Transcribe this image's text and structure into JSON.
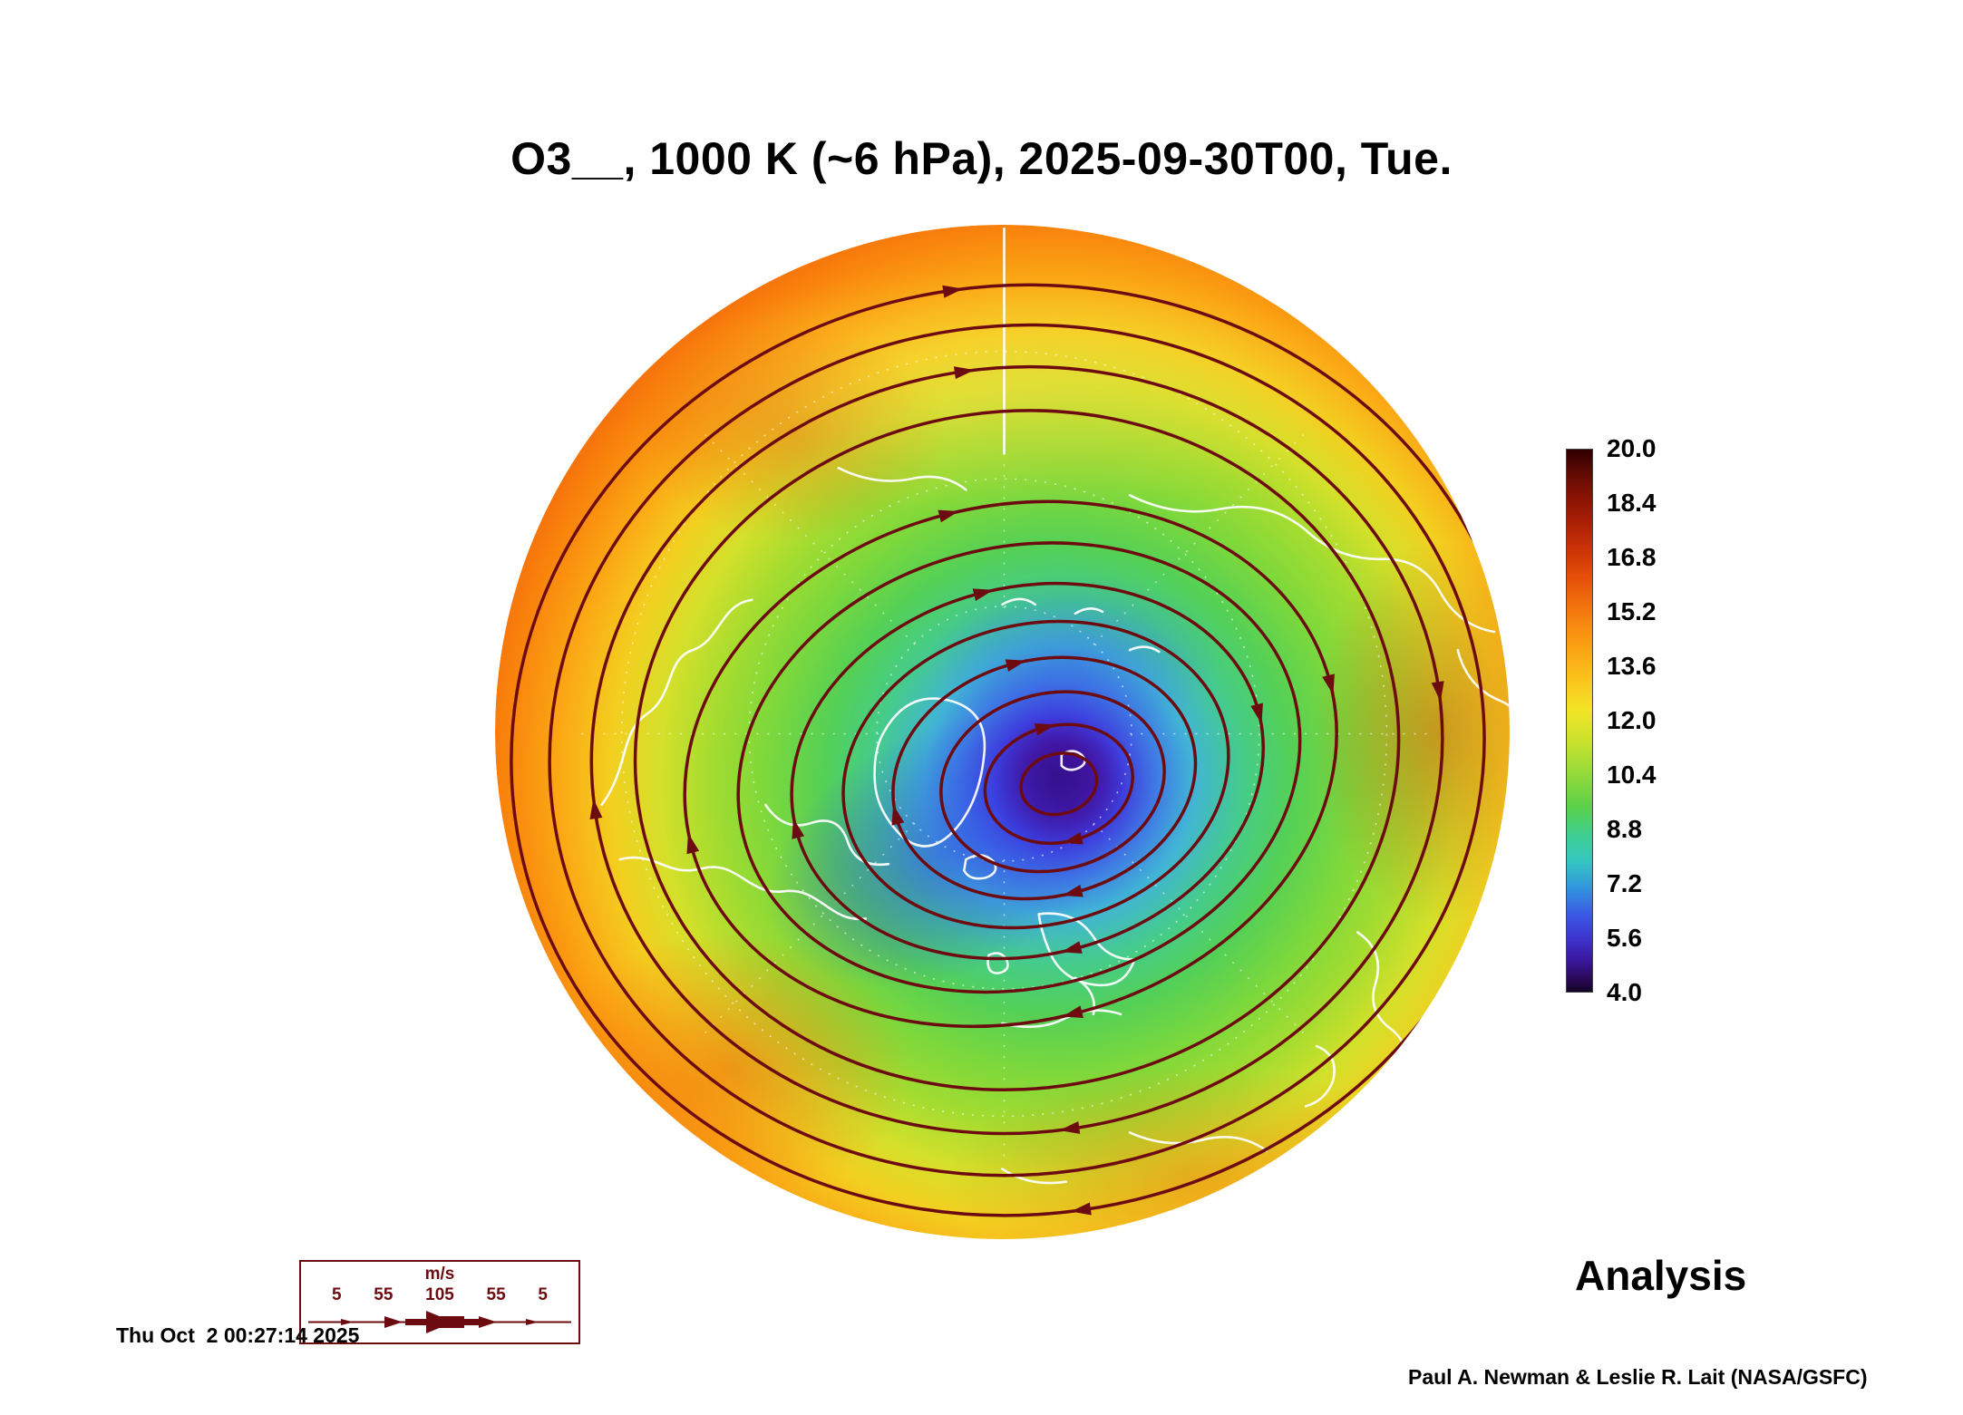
{
  "title": "O3__, 1000 K (~6 hPa), 2025-09-30T00, Tue.",
  "colorbar": {
    "ticks": [
      "20.0",
      "18.4",
      "16.8",
      "15.2",
      "13.6",
      "12.0",
      "10.4",
      "8.8",
      "7.2",
      "5.6",
      "4.0"
    ]
  },
  "wind_legend": {
    "units": "m/s",
    "values": [
      "5",
      "55",
      "105",
      "55",
      "5"
    ]
  },
  "status": {
    "analysis_label": "Analysis",
    "timestamp": "Thu Oct  2 00:27:14 2025",
    "credit": "Paul A. Newman & Leslie R. Lait (NASA/GSFC)"
  },
  "colors": {
    "maroon": "#6d0c10",
    "ink": "#000000",
    "coastline": "#ffffff",
    "vortex_core": "#2b0764",
    "rim_orange": "#f2610a"
  },
  "chart_data": {
    "type": "heatmap",
    "title": "O3__, 1000 K (~6 hPa), 2025-09-30T00, Tue.",
    "description_visible": "North polar circular map of O3 with white coastlines, white dashed graticule, dark-red wind streamlines with arrowheads, low (blue/purple) vortex core slightly right of and below map center, high (orange/red) values around the rim",
    "colorbar_ticks": [
      20.0,
      18.4,
      16.8,
      15.2,
      13.6,
      12.0,
      10.4,
      8.8,
      7.2,
      5.6,
      4.0
    ],
    "colorbar_range": [
      4.0,
      20.0
    ],
    "colorbar_orientation": "vertical-right",
    "wind_scale_values_ms": [
      5,
      55,
      105,
      55,
      5
    ],
    "wind_scale_units": "m/s",
    "annotations": [
      "Analysis",
      "Thu Oct  2 00:27:14 2025",
      "Paul A. Newman & Leslie R. Lait (NASA/GSFC)"
    ],
    "grid": "white dashed polar graticule",
    "legend_position": "colorbar right, wind scale bottom-left"
  }
}
